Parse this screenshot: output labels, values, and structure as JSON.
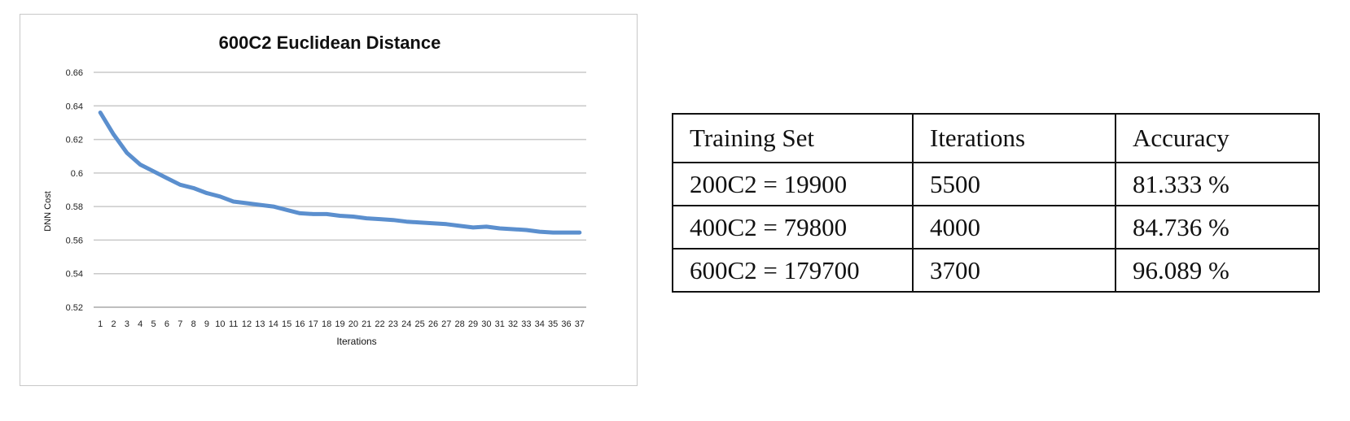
{
  "chart_data": {
    "type": "line",
    "title": "600C2 Euclidean Distance",
    "xlabel": "Iterations",
    "ylabel": "DNN Cost",
    "ylim": [
      0.52,
      0.66
    ],
    "yticks": [
      "0.52",
      "0.54",
      "0.56",
      "0.58",
      "0.6",
      "0.62",
      "0.64",
      "0.66"
    ],
    "x": [
      1,
      2,
      3,
      4,
      5,
      6,
      7,
      8,
      9,
      10,
      11,
      12,
      13,
      14,
      15,
      16,
      17,
      18,
      19,
      20,
      21,
      22,
      23,
      24,
      25,
      26,
      27,
      28,
      29,
      30,
      31,
      32,
      33,
      34,
      35,
      36,
      37
    ],
    "series": [
      {
        "values": [
          0.636,
          0.623,
          0.612,
          0.605,
          0.601,
          0.597,
          0.593,
          0.591,
          0.588,
          0.586,
          0.583,
          0.582,
          0.581,
          0.58,
          0.578,
          0.576,
          0.5755,
          0.5755,
          0.5745,
          0.574,
          0.573,
          0.5725,
          0.572,
          0.571,
          0.5705,
          0.57,
          0.5695,
          0.5685,
          0.5675,
          0.568,
          0.567,
          0.5665,
          0.566,
          0.565,
          0.5645,
          0.5645,
          0.5645
        ],
        "color": "#5b8fce"
      }
    ],
    "grid": true,
    "legend": "none"
  },
  "table": {
    "headers": [
      "Training Set",
      "Iterations",
      "Accuracy"
    ],
    "rows": [
      [
        "200C2 = 19900",
        "5500",
        "81.333 %"
      ],
      [
        "400C2 = 79800",
        "4000",
        "84.736 %"
      ],
      [
        "600C2 = 179700",
        "3700",
        "96.089 %"
      ]
    ]
  }
}
